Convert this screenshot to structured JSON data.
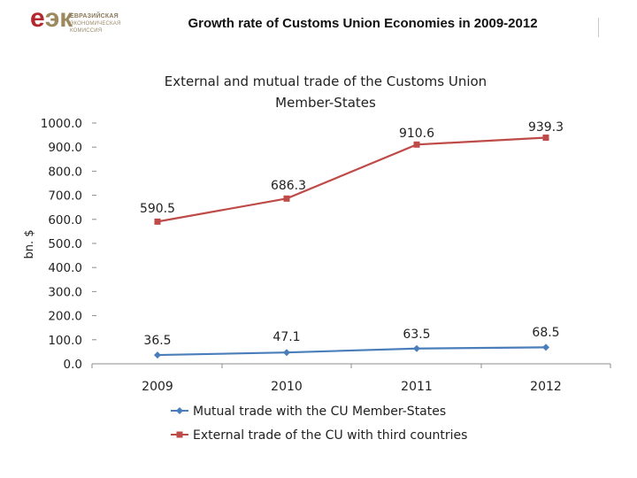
{
  "header": {
    "logo_mark": "еэк",
    "logo_text": [
      "ЕВРАЗИЙСКАЯ",
      "ЭКОНОМИЧЕСКАЯ",
      "КОМИССИЯ"
    ],
    "title": "Growth rate of Customs Union Economies in 2009-2012"
  },
  "colors": {
    "logo_e": "#b3282d",
    "logo_rest": "#9c8a5e",
    "mutual": "#4a7ebb",
    "external": "#be4b48",
    "axis": "#8c8c8c"
  },
  "chart_data": {
    "type": "line",
    "title": "External and mutual trade of the Customs Union Member-States",
    "title_lines": [
      "External and mutual trade of the Customs Union",
      "Member-States"
    ],
    "ylabel": "bn. $",
    "xlabel": "",
    "ylim": [
      0,
      1000
    ],
    "yticks": [
      0,
      100,
      200,
      300,
      400,
      500,
      600,
      700,
      800,
      900,
      1000
    ],
    "ytick_labels": [
      "0.0",
      "100.0",
      "200.0",
      "300.0",
      "400.0",
      "500.0",
      "600.0",
      "700.0",
      "800.0",
      "900.0",
      "1000.0"
    ],
    "categories": [
      "2009",
      "2010",
      "2011",
      "2012"
    ],
    "series": [
      {
        "name": "Mutual trade with the CU Member-States",
        "values": [
          36.5,
          47.1,
          63.5,
          68.5
        ],
        "labels": [
          "36.5",
          "47.1",
          "63.5",
          "68.5"
        ],
        "marker": "diamond",
        "color": "#4a7ebb"
      },
      {
        "name": "External trade of the CU with third countries",
        "values": [
          590.5,
          686.3,
          910.6,
          939.3
        ],
        "labels": [
          "590.5",
          "686.3",
          "910.6",
          "939.3"
        ],
        "marker": "square",
        "color": "#be4b48"
      }
    ],
    "grid": false,
    "legend": "bottom"
  }
}
